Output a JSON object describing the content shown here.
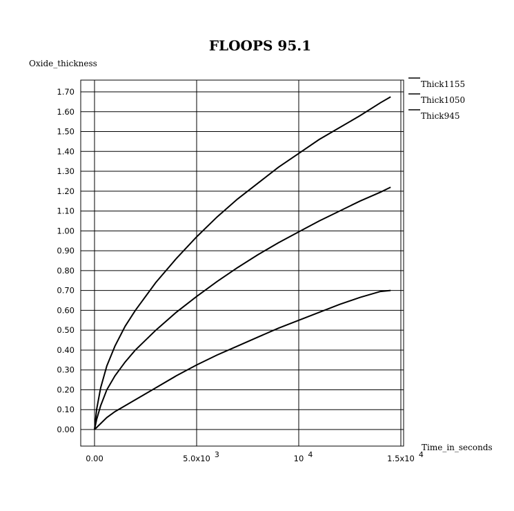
{
  "chart_data": {
    "type": "line",
    "title": "FLOOPS 95.1",
    "ylabel": "Oxide_thickness",
    "xlabel": "Time_in_seconds",
    "xlim": [
      0,
      15300
    ],
    "ylim": [
      0,
      1.7
    ],
    "grid": true,
    "y_ticks": [
      {
        "value": 0.0,
        "label": "0.00"
      },
      {
        "value": 0.1,
        "label": "0.10"
      },
      {
        "value": 0.2,
        "label": "0.20"
      },
      {
        "value": 0.3,
        "label": "0.30"
      },
      {
        "value": 0.4,
        "label": "0.40"
      },
      {
        "value": 0.5,
        "label": "0.50"
      },
      {
        "value": 0.6,
        "label": "0.60"
      },
      {
        "value": 0.7,
        "label": "0.70"
      },
      {
        "value": 0.8,
        "label": "0.80"
      },
      {
        "value": 0.9,
        "label": "0.90"
      },
      {
        "value": 1.0,
        "label": "1.00"
      },
      {
        "value": 1.1,
        "label": "1.10"
      },
      {
        "value": 1.2,
        "label": "1.20"
      },
      {
        "value": 1.3,
        "label": "1.30"
      },
      {
        "value": 1.4,
        "label": "1.40"
      },
      {
        "value": 1.5,
        "label": "1.50"
      },
      {
        "value": 1.6,
        "label": "1.60"
      },
      {
        "value": 1.7,
        "label": "1.70"
      }
    ],
    "x_ticks": [
      {
        "value": 0,
        "label": "0.00",
        "exp": ""
      },
      {
        "value": 5000,
        "label": "5.0x10",
        "exp": "3"
      },
      {
        "value": 10000,
        "label": "10",
        "exp": "4"
      },
      {
        "value": 15000,
        "label": "1.5x10",
        "exp": "4"
      }
    ],
    "legend_position": "top-right",
    "series": [
      {
        "name": "Thick1155",
        "x": [
          0,
          100,
          300,
          600,
          1000,
          1500,
          2000,
          3000,
          4000,
          5000,
          6000,
          7000,
          8000,
          9000,
          10000,
          11000,
          12000,
          13000,
          14000,
          14500
        ],
        "values": [
          0,
          0.1,
          0.21,
          0.32,
          0.42,
          0.52,
          0.6,
          0.74,
          0.86,
          0.97,
          1.07,
          1.16,
          1.24,
          1.32,
          1.39,
          1.46,
          1.52,
          1.58,
          1.645,
          1.675
        ]
      },
      {
        "name": "Thick1050",
        "x": [
          0,
          100,
          300,
          600,
          1000,
          1500,
          2000,
          3000,
          4000,
          5000,
          6000,
          7000,
          8000,
          9000,
          10000,
          11000,
          12000,
          13000,
          14000,
          14500
        ],
        "values": [
          0,
          0.05,
          0.12,
          0.2,
          0.27,
          0.34,
          0.4,
          0.5,
          0.59,
          0.67,
          0.745,
          0.815,
          0.88,
          0.94,
          0.995,
          1.05,
          1.1,
          1.15,
          1.195,
          1.22
        ]
      },
      {
        "name": "Thick945",
        "x": [
          0,
          100,
          300,
          600,
          1000,
          1500,
          2000,
          3000,
          4000,
          5000,
          6000,
          7000,
          8000,
          9000,
          10000,
          11000,
          12000,
          13000,
          14000,
          14500
        ],
        "values": [
          0,
          0.01,
          0.03,
          0.06,
          0.09,
          0.12,
          0.15,
          0.21,
          0.27,
          0.325,
          0.375,
          0.42,
          0.465,
          0.51,
          0.55,
          0.59,
          0.63,
          0.665,
          0.695,
          0.7
        ]
      }
    ]
  }
}
